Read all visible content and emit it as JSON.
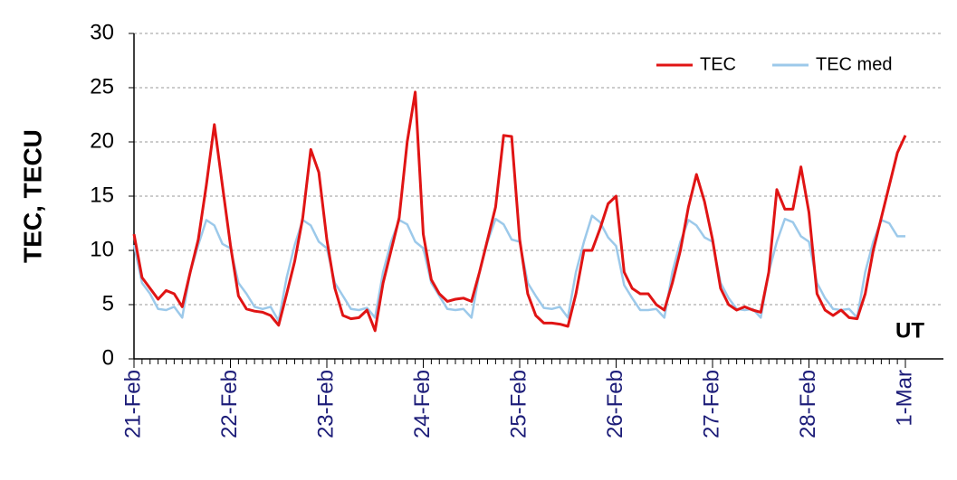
{
  "chart_data": {
    "type": "line",
    "y_label": "TEC, TECU",
    "annotation": "UT",
    "categories": [
      "21-Feb",
      null,
      null,
      null,
      null,
      null,
      null,
      null,
      null,
      null,
      null,
      null,
      "22-Feb",
      null,
      null,
      null,
      null,
      null,
      null,
      null,
      null,
      null,
      null,
      null,
      "23-Feb",
      null,
      null,
      null,
      null,
      null,
      null,
      null,
      null,
      null,
      null,
      null,
      "24-Feb",
      null,
      null,
      null,
      null,
      null,
      null,
      null,
      null,
      null,
      null,
      null,
      "25-Feb",
      null,
      null,
      null,
      null,
      null,
      null,
      null,
      null,
      null,
      null,
      null,
      "26-Feb",
      null,
      null,
      null,
      null,
      null,
      null,
      null,
      null,
      null,
      null,
      null,
      "27-Feb",
      null,
      null,
      null,
      null,
      null,
      null,
      null,
      null,
      null,
      null,
      null,
      "28-Feb",
      null,
      null,
      null,
      null,
      null,
      null,
      null,
      null,
      null,
      null,
      null,
      "1-Mar"
    ],
    "series": [
      {
        "name": "TEC",
        "color": "#e01414",
        "values": [
          11.5,
          7.5,
          6.5,
          5.5,
          6.3,
          6.0,
          4.8,
          8.0,
          11.0,
          16.0,
          21.6,
          16.0,
          10.5,
          5.8,
          4.6,
          4.4,
          4.3,
          4.0,
          3.1,
          6.0,
          9.0,
          13.0,
          19.3,
          17.2,
          11.0,
          6.5,
          4.0,
          3.7,
          3.8,
          4.5,
          2.6,
          7.0,
          10.0,
          13.0,
          20.0,
          24.6,
          11.5,
          7.3,
          6.0,
          5.3,
          5.5,
          5.6,
          5.3,
          8.0,
          11.0,
          14.0,
          20.6,
          20.5,
          11.0,
          6.0,
          4.0,
          3.3,
          3.3,
          3.2,
          3.0,
          6.0,
          10.0,
          10.0,
          12.0,
          14.3,
          15.0,
          8.0,
          6.5,
          6.0,
          6.0,
          5.0,
          4.5,
          7.0,
          10.0,
          14.0,
          17.0,
          14.5,
          11.0,
          6.5,
          5.0,
          4.5,
          4.8,
          4.5,
          4.3,
          8.0,
          15.6,
          13.8,
          13.8,
          17.7,
          13.5,
          6.0,
          4.5,
          4.0,
          4.5,
          3.8,
          3.7,
          6.0,
          10.0,
          13.0,
          16.0,
          19.0,
          20.6
        ]
      },
      {
        "name": "TEC med",
        "color": "#9cc9ea",
        "values": [
          10.5,
          7.0,
          6.0,
          4.6,
          4.5,
          4.8,
          3.8,
          8.0,
          10.5,
          12.8,
          12.3,
          10.6,
          10.2,
          7.0,
          6.0,
          4.8,
          4.6,
          4.8,
          3.5,
          7.5,
          10.5,
          12.8,
          12.3,
          10.8,
          10.2,
          7.0,
          5.8,
          4.6,
          4.5,
          4.7,
          3.8,
          8.0,
          10.8,
          12.8,
          12.4,
          10.8,
          10.2,
          7.0,
          5.8,
          4.6,
          4.5,
          4.6,
          3.8,
          8.0,
          10.8,
          12.9,
          12.4,
          11.0,
          10.8,
          7.0,
          5.8,
          4.7,
          4.6,
          4.8,
          3.8,
          8.0,
          10.8,
          13.2,
          12.6,
          11.2,
          10.4,
          6.8,
          5.6,
          4.5,
          4.5,
          4.6,
          3.8,
          8.0,
          10.8,
          12.8,
          12.3,
          11.2,
          10.8,
          7.0,
          5.6,
          4.6,
          4.5,
          4.6,
          3.8,
          8.0,
          10.8,
          12.9,
          12.6,
          11.3,
          10.8,
          7.0,
          5.6,
          4.6,
          4.5,
          4.6,
          3.8,
          8.0,
          10.8,
          12.8,
          12.5,
          11.3,
          11.3
        ]
      }
    ],
    "ylim": [
      0,
      30
    ],
    "yticks": [
      0,
      5,
      10,
      15,
      20,
      25,
      30
    ],
    "grid": true,
    "legend": "upper right"
  }
}
